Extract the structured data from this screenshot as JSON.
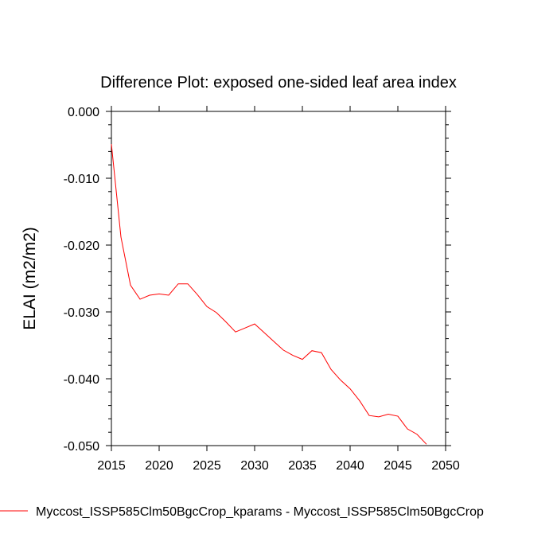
{
  "chart_data": {
    "type": "line",
    "title": "Difference Plot: exposed one-sided leaf area index",
    "xlabel": "",
    "ylabel": "ELAI  (m2/m2)",
    "xlim": [
      2015,
      2050
    ],
    "ylim": [
      -0.05,
      0.0
    ],
    "xticks": [
      2015,
      2020,
      2025,
      2030,
      2035,
      2040,
      2045,
      2050
    ],
    "xtick_labels": [
      "2015",
      "2020",
      "2025",
      "2030",
      "2035",
      "2040",
      "2045",
      "2050"
    ],
    "yticks": [
      0.0,
      -0.01,
      -0.02,
      -0.03,
      -0.04,
      -0.05
    ],
    "ytick_labels": [
      "0.000",
      "-0.010",
      "-0.020",
      "-0.030",
      "-0.040",
      "-0.050"
    ],
    "grid": false,
    "legend_position": "bottom",
    "series": [
      {
        "name": "Myccost_ISSP585Clm50BgcCrop_kparams - Myccost_ISSP585Clm50BgcCrop",
        "color": "#ff0000",
        "x": [
          2015,
          2016,
          2017,
          2018,
          2019,
          2020,
          2021,
          2022,
          2023,
          2024,
          2025,
          2026,
          2027,
          2028,
          2029,
          2030,
          2031,
          2032,
          2033,
          2034,
          2035,
          2036,
          2037,
          2038,
          2039,
          2040,
          2041,
          2042,
          2043,
          2044,
          2045,
          2046,
          2047,
          2048
        ],
        "y": [
          -0.0049,
          -0.0188,
          -0.026,
          -0.0281,
          -0.0275,
          -0.0273,
          -0.0275,
          -0.0258,
          -0.0258,
          -0.0274,
          -0.0292,
          -0.0301,
          -0.0315,
          -0.033,
          -0.0324,
          -0.0318,
          -0.0331,
          -0.0344,
          -0.0357,
          -0.0365,
          -0.0371,
          -0.0358,
          -0.0361,
          -0.0386,
          -0.0402,
          -0.0415,
          -0.0433,
          -0.0455,
          -0.0457,
          -0.0453,
          -0.0456,
          -0.0475,
          -0.0483,
          -0.0498
        ]
      }
    ]
  }
}
